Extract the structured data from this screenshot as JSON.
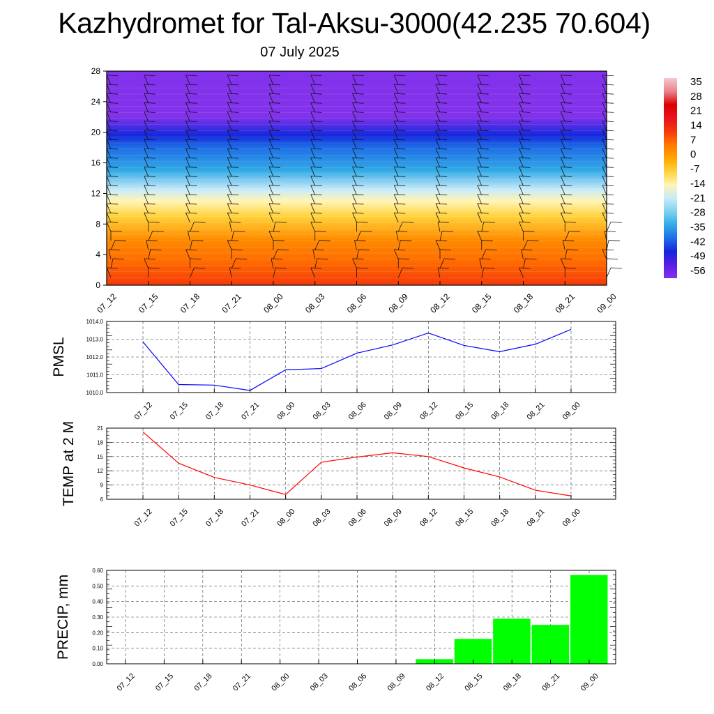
{
  "header": {
    "title": "Kazhydromet for Tal-Aksu-3000(42.235 70.604)",
    "subtitle": "07 July 2025"
  },
  "chart_data": [
    {
      "type": "heatmap",
      "name": "vertical-profile",
      "x_tick_labels": [
        "07_12",
        "07_15",
        "07_18",
        "07_21",
        "08_00",
        "08_03",
        "08_06",
        "08_09",
        "08_12",
        "08_15",
        "08_18",
        "08_21",
        "09_00"
      ],
      "y_tick_labels": [
        "0",
        "4",
        "8",
        "12",
        "16",
        "20",
        "24",
        "28"
      ],
      "ylim": [
        0,
        28
      ],
      "colorbar_labels": [
        "35",
        "28",
        "21",
        "14",
        "7",
        "0",
        "-7",
        "-14",
        "-21",
        "-28",
        "-35",
        "-42",
        "-49",
        "-56"
      ],
      "colors": {
        "surface": "#f53a0a",
        "warm": "#ff8c00",
        "mild": "#ffd23c",
        "zero": "#fff5b4",
        "cool": "#c8ebfa",
        "cold": "#32aae6",
        "colder": "#1e6ee6",
        "coldest": "#1428dc",
        "top": "#8232eb"
      },
      "wind_barbs": true
    },
    {
      "type": "line",
      "ylabel": "PMSL",
      "x_tick_labels": [
        "07_12",
        "07_15",
        "07_18",
        "07_21",
        "08_00",
        "08_03",
        "08_06",
        "08_09",
        "08_12",
        "08_15",
        "08_18",
        "08_21",
        "09_00"
      ],
      "y_tick_labels": [
        "1010.0",
        "1011.0",
        "1012.0",
        "1013.0",
        "1014.0"
      ],
      "ylim": [
        1010.0,
        1014.0
      ],
      "values": [
        1012.85,
        1010.45,
        1010.42,
        1010.12,
        1011.28,
        1011.35,
        1012.22,
        1012.68,
        1013.35,
        1012.65,
        1012.3,
        1012.72,
        1013.55
      ],
      "color": "#0000ff",
      "grid": true
    },
    {
      "type": "line",
      "ylabel": "TEMP at 2 M",
      "x_tick_labels": [
        "07_12",
        "07_15",
        "07_18",
        "07_21",
        "08_00",
        "08_03",
        "08_06",
        "08_09",
        "08_12",
        "08_15",
        "08_18",
        "08_21",
        "09_00"
      ],
      "y_tick_labels": [
        "6",
        "9",
        "12",
        "15",
        "18",
        "21"
      ],
      "ylim": [
        6,
        21
      ],
      "values": [
        20.2,
        13.6,
        10.6,
        9.0,
        7.0,
        13.8,
        14.9,
        15.8,
        15.0,
        12.6,
        10.7,
        7.9,
        6.7
      ],
      "color": "#ff0000",
      "grid": true
    },
    {
      "type": "bar",
      "ylabel": "PRECIP, mm",
      "categories": [
        "07_12",
        "07_15",
        "07_18",
        "07_21",
        "08_00",
        "08_03",
        "08_06",
        "08_09",
        "08_12",
        "08_15",
        "08_18",
        "08_21",
        "09_00"
      ],
      "y_tick_labels": [
        "0.00",
        "0.10",
        "0.20",
        "0.30",
        "0.40",
        "0.50",
        "0.60"
      ],
      "ylim": [
        0,
        0.6
      ],
      "values": [
        0,
        0,
        0,
        0,
        0,
        0,
        0,
        0,
        0.03,
        0.16,
        0.29,
        0.25,
        0.57
      ],
      "color": "#00ff00",
      "grid": true
    }
  ]
}
